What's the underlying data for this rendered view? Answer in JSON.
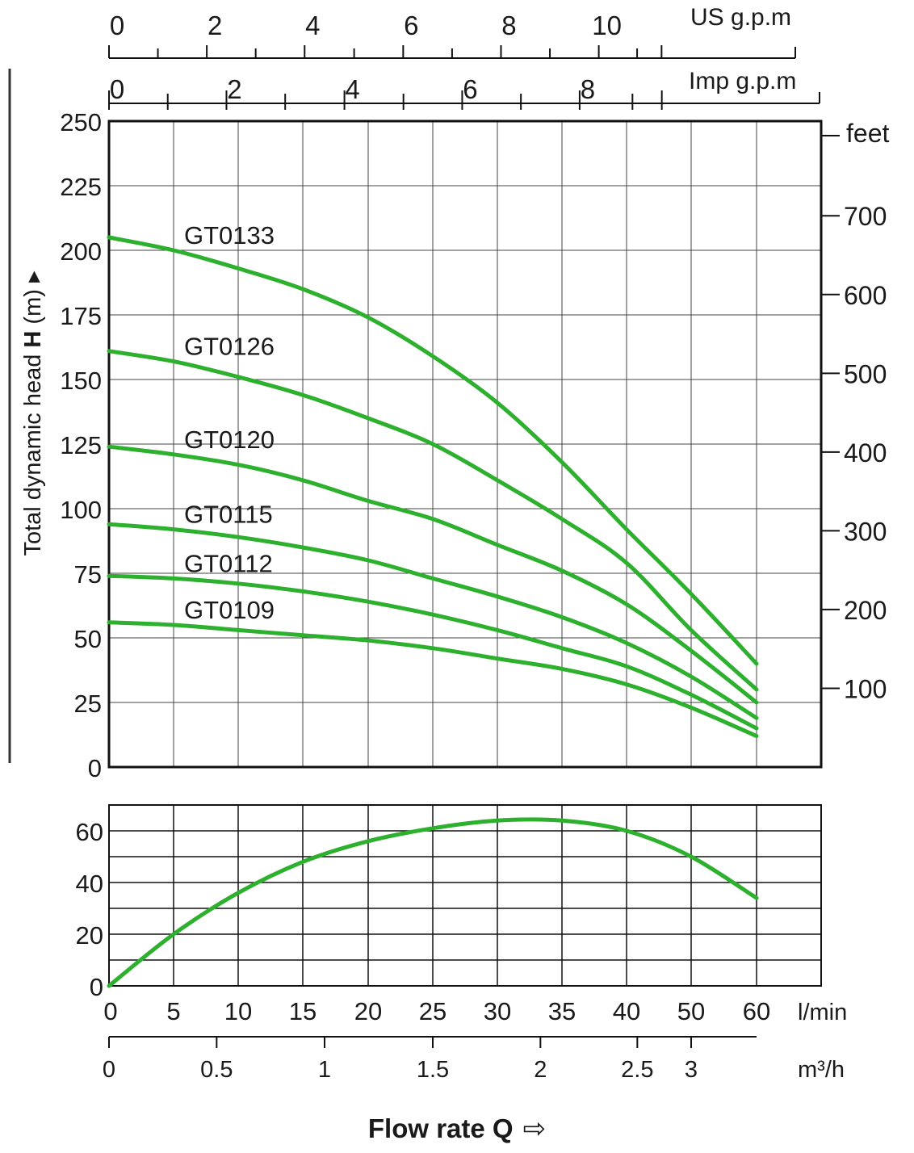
{
  "chart_data": [
    {
      "type": "line",
      "ylabel_prefix": "Total dynamic head",
      "ylabel_bold": "H",
      "ylabel_suffix": "(m)",
      "ylabel_marker": "▸",
      "ylim": [
        0,
        250
      ],
      "y_ticks": [
        0,
        25,
        50,
        75,
        100,
        125,
        150,
        175,
        200,
        225,
        250
      ],
      "right_axis": {
        "unit": "feet",
        "ticks": [
          100,
          200,
          300,
          400,
          500,
          600,
          700
        ],
        "m_per_unit": 0.3048
      },
      "top_axes": [
        {
          "unit": "US g.p.m",
          "labels": [
            "0",
            "2",
            "4",
            "6",
            "8",
            "10"
          ],
          "lpm_per_unit": 3.785
        },
        {
          "unit": "Imp g.p.m",
          "labels": [
            "0",
            "2",
            "4",
            "6",
            "8"
          ],
          "lpm_per_unit": 4.546
        }
      ],
      "x_unit": "l/min",
      "x_ticks": [
        "0",
        "5",
        "10",
        "15",
        "20",
        "25",
        "30",
        "35",
        "40",
        "50",
        "60"
      ],
      "x_secondary_unit": "m³/h",
      "x_secondary_ticks": [
        "0",
        "0.5",
        "1",
        "1.5",
        "2",
        "2.5",
        "3"
      ],
      "grid": true,
      "line_color": "#2db02d",
      "series": [
        {
          "name": "GT0133",
          "x": [
            0,
            5,
            10,
            15,
            20,
            25,
            30,
            35,
            40,
            50,
            60
          ],
          "values": [
            205,
            200,
            193,
            185,
            174,
            159,
            141,
            118,
            92,
            67,
            40
          ]
        },
        {
          "name": "GT0126",
          "x": [
            0,
            5,
            10,
            15,
            20,
            25,
            30,
            35,
            40,
            50,
            60
          ],
          "values": [
            161,
            157,
            151,
            144,
            135,
            125,
            111,
            96,
            79,
            53,
            30
          ]
        },
        {
          "name": "GT0120",
          "x": [
            0,
            5,
            10,
            15,
            20,
            25,
            30,
            35,
            40,
            50,
            60
          ],
          "values": [
            124,
            121,
            117,
            111,
            103,
            96,
            86,
            76,
            63,
            45,
            25
          ]
        },
        {
          "name": "GT0115",
          "x": [
            0,
            5,
            10,
            15,
            20,
            25,
            30,
            35,
            40,
            50,
            60
          ],
          "values": [
            94,
            92,
            89,
            85,
            80,
            73,
            66,
            58,
            48,
            35,
            19
          ]
        },
        {
          "name": "GT0112",
          "x": [
            0,
            5,
            10,
            15,
            20,
            25,
            30,
            35,
            40,
            50,
            60
          ],
          "values": [
            74,
            73,
            71,
            68,
            64,
            59,
            53,
            46,
            39,
            28,
            15
          ]
        },
        {
          "name": "GT0109",
          "x": [
            0,
            5,
            10,
            15,
            20,
            25,
            30,
            35,
            40,
            50,
            60
          ],
          "values": [
            56,
            55,
            53,
            51,
            49,
            46,
            42,
            38,
            32,
            23,
            12
          ]
        }
      ]
    },
    {
      "type": "line",
      "ylim": [
        0,
        70
      ],
      "y_ticks": [
        0,
        20,
        40,
        60
      ],
      "grid": true,
      "line_color": "#2db02d",
      "series": [
        {
          "name": "",
          "x": [
            0,
            5,
            10,
            15,
            20,
            25,
            30,
            35,
            40,
            50,
            60
          ],
          "values": [
            0,
            20,
            36,
            48,
            56,
            61,
            64,
            64,
            60,
            50,
            34
          ]
        }
      ]
    }
  ],
  "footer": {
    "label": "Flow rate Q",
    "arrow": "⇨"
  }
}
